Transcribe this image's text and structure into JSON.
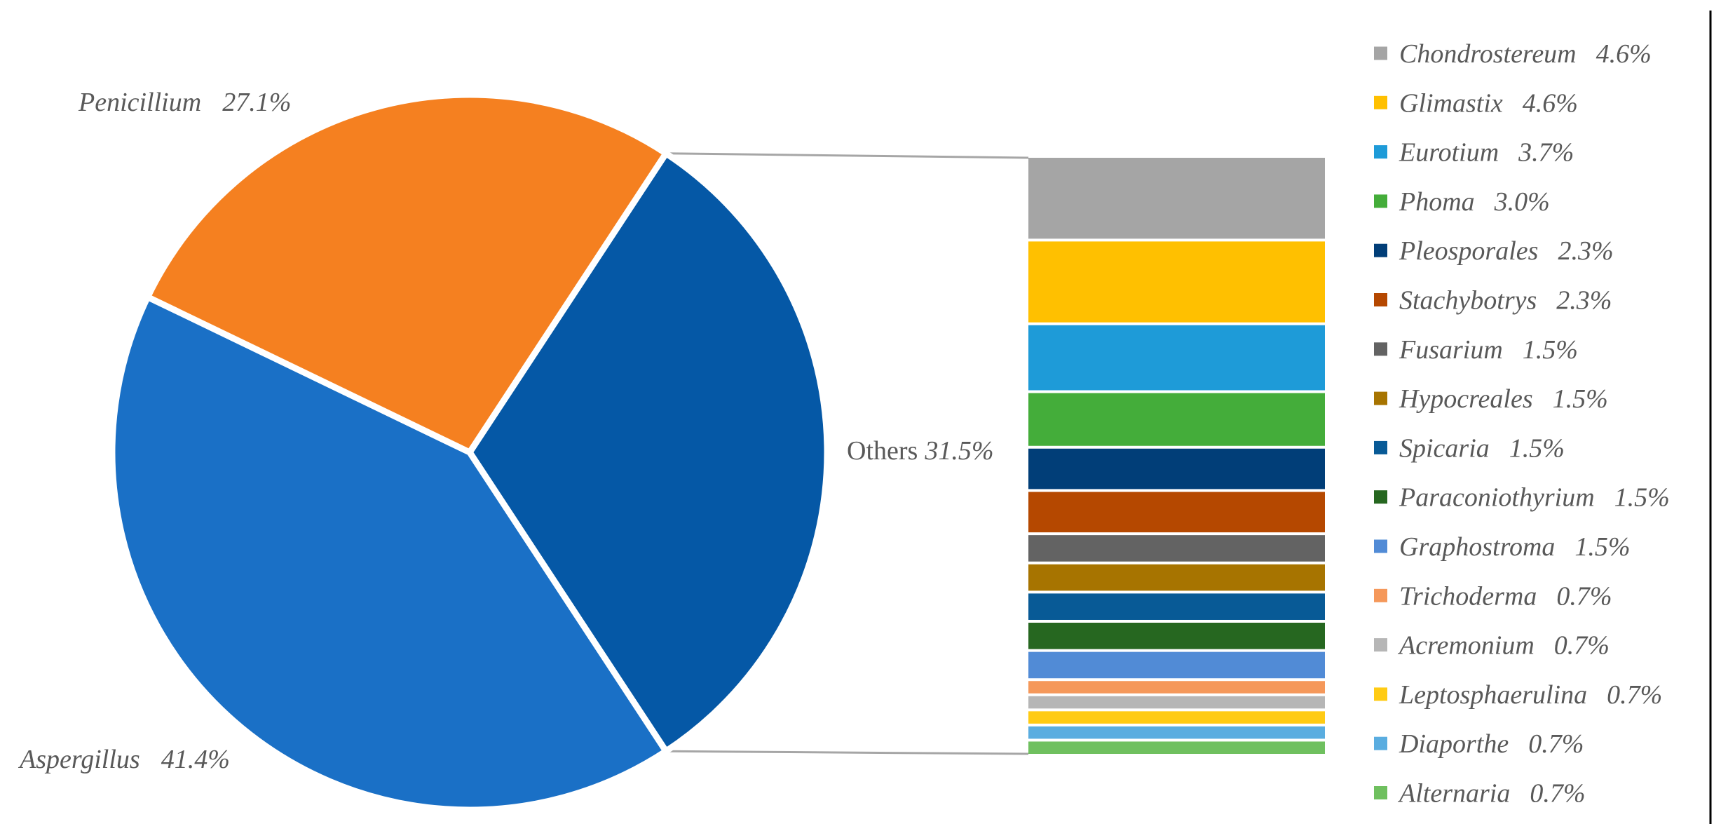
{
  "chart_data": {
    "type": "bar-of-pie",
    "pie": {
      "slices": [
        {
          "name": "Aspergillus",
          "value": 41.4,
          "label": "41.4%",
          "color": "#1a70c6"
        },
        {
          "name": "Penicillium",
          "value": 27.1,
          "label": "27.1%",
          "color": "#f58020"
        },
        {
          "name": "Others",
          "value": 31.5,
          "label": "31.5%",
          "color": "#0558a6"
        }
      ]
    },
    "bar": {
      "series": [
        {
          "name": "Chondrostereum",
          "value": 4.6,
          "label": "4.6%",
          "color": "#a5a5a5"
        },
        {
          "name": "Glimastix",
          "value": 4.6,
          "label": "4.6%",
          "color": "#ffc000"
        },
        {
          "name": "Eurotium",
          "value": 3.7,
          "label": "3.7%",
          "color": "#1e9bd8"
        },
        {
          "name": "Phoma",
          "value": 3.0,
          "label": "3.0%",
          "color": "#44ad3a"
        },
        {
          "name": "Pleosporales",
          "value": 2.3,
          "label": "2.3%",
          "color": "#013e78"
        },
        {
          "name": "Stachybotrys",
          "value": 2.3,
          "label": "2.3%",
          "color": "#b54800"
        },
        {
          "name": "Fusarium",
          "value": 1.5,
          "label": "1.5%",
          "color": "#636363"
        },
        {
          "name": "Hypocreales",
          "value": 1.5,
          "label": "1.5%",
          "color": "#a77400"
        },
        {
          "name": "Spicaria",
          "value": 1.5,
          "label": "1.5%",
          "color": "#085a96"
        },
        {
          "name": "Paraconiothyrium",
          "value": 1.5,
          "label": "1.5%",
          "color": "#266720"
        },
        {
          "name": "Graphostroma",
          "value": 1.5,
          "label": "1.5%",
          "color": "#518bd6"
        },
        {
          "name": "Trichoderma",
          "value": 0.7,
          "label": "0.7%",
          "color": "#f5985a"
        },
        {
          "name": "Acremonium",
          "value": 0.7,
          "label": "0.7%",
          "color": "#b6b6b6"
        },
        {
          "name": "Leptosphaerulina",
          "value": 0.7,
          "label": "0.7%",
          "color": "#ffcb14"
        },
        {
          "name": "Diaporthe",
          "value": 0.7,
          "label": "0.7%",
          "color": "#5aade0"
        },
        {
          "name": "Alternaria",
          "value": 0.7,
          "label": "0.7%",
          "color": "#6fc05f"
        }
      ]
    },
    "legend_position": "right",
    "grid": false
  }
}
